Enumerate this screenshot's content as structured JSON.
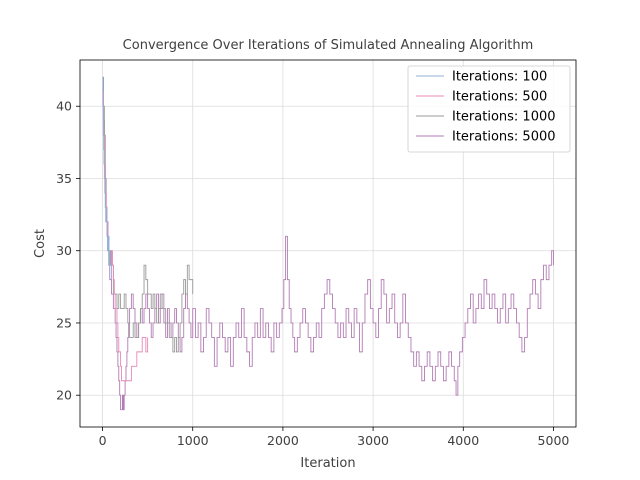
{
  "chart_data": {
    "type": "line",
    "title": "Convergence Over Iterations of Simulated Annealing Algorithm",
    "xlabel": "Iteration",
    "ylabel": "Cost",
    "xlim": [
      -250,
      5250
    ],
    "ylim": [
      17.8,
      43.2
    ],
    "xticks": [
      0,
      1000,
      2000,
      3000,
      4000,
      5000
    ],
    "yticks": [
      20,
      25,
      30,
      35,
      40
    ],
    "grid": true,
    "legend_position": "top-right",
    "series": [
      {
        "name": "Iterations: 100",
        "color": "#8fb0d8",
        "points": [
          [
            0,
            42
          ],
          [
            4,
            40
          ],
          [
            8,
            38
          ],
          [
            12,
            37
          ],
          [
            16,
            36
          ],
          [
            20,
            35
          ],
          [
            25,
            34
          ],
          [
            30,
            33
          ],
          [
            35,
            32
          ],
          [
            40,
            33
          ],
          [
            45,
            32
          ],
          [
            50,
            31
          ],
          [
            55,
            30
          ],
          [
            60,
            30
          ],
          [
            65,
            31
          ],
          [
            70,
            30
          ],
          [
            75,
            29
          ],
          [
            80,
            30
          ],
          [
            85,
            29
          ],
          [
            90,
            29
          ],
          [
            95,
            29
          ],
          [
            100,
            28
          ]
        ]
      },
      {
        "name": "Iterations: 500",
        "color": "#e889b6",
        "points": [
          [
            0,
            41
          ],
          [
            10,
            38
          ],
          [
            20,
            36
          ],
          [
            30,
            34
          ],
          [
            40,
            33
          ],
          [
            50,
            32
          ],
          [
            60,
            30
          ],
          [
            70,
            30
          ],
          [
            80,
            29
          ],
          [
            90,
            29
          ],
          [
            100,
            30
          ],
          [
            110,
            29
          ],
          [
            120,
            28
          ],
          [
            130,
            27
          ],
          [
            140,
            26
          ],
          [
            150,
            26
          ],
          [
            160,
            25
          ],
          [
            170,
            24
          ],
          [
            180,
            23
          ],
          [
            190,
            23
          ],
          [
            200,
            22
          ],
          [
            210,
            21
          ],
          [
            220,
            21
          ],
          [
            240,
            21
          ],
          [
            260,
            21
          ],
          [
            280,
            21
          ],
          [
            300,
            21
          ],
          [
            320,
            22
          ],
          [
            340,
            22
          ],
          [
            360,
            22
          ],
          [
            380,
            23
          ],
          [
            400,
            23
          ],
          [
            420,
            23
          ],
          [
            440,
            24
          ],
          [
            460,
            24
          ],
          [
            480,
            23
          ],
          [
            500,
            24
          ]
        ]
      },
      {
        "name": "Iterations: 1000",
        "color": "#999999",
        "points": [
          [
            0,
            42
          ],
          [
            10,
            40
          ],
          [
            20,
            38
          ],
          [
            30,
            35
          ],
          [
            40,
            33
          ],
          [
            50,
            31
          ],
          [
            60,
            30
          ],
          [
            70,
            29
          ],
          [
            80,
            29
          ],
          [
            90,
            30
          ],
          [
            100,
            29
          ],
          [
            120,
            27
          ],
          [
            140,
            27
          ],
          [
            160,
            26
          ],
          [
            180,
            27
          ],
          [
            200,
            26
          ],
          [
            220,
            26
          ],
          [
            240,
            27
          ],
          [
            260,
            26
          ],
          [
            280,
            25
          ],
          [
            300,
            24
          ],
          [
            320,
            24
          ],
          [
            340,
            25
          ],
          [
            360,
            24
          ],
          [
            380,
            24
          ],
          [
            400,
            25
          ],
          [
            420,
            26
          ],
          [
            440,
            27
          ],
          [
            460,
            29
          ],
          [
            480,
            28
          ],
          [
            500,
            27
          ],
          [
            520,
            27
          ],
          [
            540,
            26
          ],
          [
            560,
            27
          ],
          [
            580,
            26
          ],
          [
            600,
            25
          ],
          [
            620,
            26
          ],
          [
            640,
            27
          ],
          [
            660,
            26
          ],
          [
            680,
            26
          ],
          [
            700,
            25
          ],
          [
            720,
            25
          ],
          [
            740,
            24
          ],
          [
            760,
            24
          ],
          [
            780,
            23
          ],
          [
            800,
            24
          ],
          [
            820,
            23
          ],
          [
            840,
            24
          ],
          [
            860,
            25
          ],
          [
            880,
            27
          ],
          [
            900,
            28
          ],
          [
            920,
            27
          ],
          [
            940,
            29
          ],
          [
            960,
            28
          ],
          [
            980,
            28
          ],
          [
            1000,
            27
          ]
        ]
      },
      {
        "name": "Iterations: 5000",
        "color": "#b27cb4",
        "points": [
          [
            0,
            42
          ],
          [
            10,
            39
          ],
          [
            20,
            36
          ],
          [
            30,
            34
          ],
          [
            40,
            33
          ],
          [
            50,
            32
          ],
          [
            60,
            31
          ],
          [
            70,
            29
          ],
          [
            80,
            28
          ],
          [
            90,
            28
          ],
          [
            100,
            27
          ],
          [
            110,
            27
          ],
          [
            120,
            26
          ],
          [
            130,
            26
          ],
          [
            140,
            25
          ],
          [
            150,
            24
          ],
          [
            160,
            23
          ],
          [
            170,
            22
          ],
          [
            180,
            21
          ],
          [
            190,
            20
          ],
          [
            200,
            19
          ],
          [
            210,
            19
          ],
          [
            220,
            20
          ],
          [
            230,
            19
          ],
          [
            240,
            20
          ],
          [
            250,
            21
          ],
          [
            260,
            22
          ],
          [
            270,
            23
          ],
          [
            280,
            24
          ],
          [
            290,
            25
          ],
          [
            300,
            26
          ],
          [
            320,
            27
          ],
          [
            340,
            26
          ],
          [
            360,
            25
          ],
          [
            380,
            24
          ],
          [
            400,
            25
          ],
          [
            420,
            26
          ],
          [
            440,
            25
          ],
          [
            460,
            26
          ],
          [
            480,
            27
          ],
          [
            500,
            26
          ],
          [
            520,
            25
          ],
          [
            540,
            24
          ],
          [
            560,
            25
          ],
          [
            580,
            26
          ],
          [
            600,
            27
          ],
          [
            620,
            25
          ],
          [
            640,
            26
          ],
          [
            660,
            27
          ],
          [
            680,
            25
          ],
          [
            700,
            24
          ],
          [
            720,
            26
          ],
          [
            740,
            25
          ],
          [
            760,
            24
          ],
          [
            780,
            25
          ],
          [
            800,
            26
          ],
          [
            820,
            25
          ],
          [
            840,
            24
          ],
          [
            860,
            23
          ],
          [
            880,
            24
          ],
          [
            900,
            26
          ],
          [
            920,
            27
          ],
          [
            940,
            26
          ],
          [
            960,
            25
          ],
          [
            980,
            24
          ],
          [
            1000,
            26
          ],
          [
            1030,
            24
          ],
          [
            1060,
            25
          ],
          [
            1090,
            23
          ],
          [
            1120,
            24
          ],
          [
            1150,
            26
          ],
          [
            1180,
            25
          ],
          [
            1210,
            24
          ],
          [
            1240,
            22
          ],
          [
            1270,
            24
          ],
          [
            1300,
            25
          ],
          [
            1330,
            24
          ],
          [
            1360,
            23
          ],
          [
            1390,
            24
          ],
          [
            1420,
            22
          ],
          [
            1450,
            24
          ],
          [
            1480,
            25
          ],
          [
            1510,
            24
          ],
          [
            1540,
            26
          ],
          [
            1570,
            24
          ],
          [
            1600,
            23
          ],
          [
            1630,
            22
          ],
          [
            1660,
            24
          ],
          [
            1690,
            25
          ],
          [
            1720,
            24
          ],
          [
            1750,
            26
          ],
          [
            1780,
            24
          ],
          [
            1810,
            25
          ],
          [
            1840,
            24
          ],
          [
            1870,
            23
          ],
          [
            1900,
            25
          ],
          [
            1930,
            24
          ],
          [
            1960,
            25
          ],
          [
            1990,
            26
          ],
          [
            2010,
            28
          ],
          [
            2030,
            31
          ],
          [
            2050,
            28
          ],
          [
            2070,
            26
          ],
          [
            2090,
            25
          ],
          [
            2110,
            24
          ],
          [
            2130,
            23
          ],
          [
            2160,
            24
          ],
          [
            2190,
            25
          ],
          [
            2220,
            26
          ],
          [
            2250,
            25
          ],
          [
            2280,
            24
          ],
          [
            2310,
            23
          ],
          [
            2340,
            24
          ],
          [
            2370,
            25
          ],
          [
            2400,
            24
          ],
          [
            2430,
            26
          ],
          [
            2460,
            27
          ],
          [
            2490,
            28
          ],
          [
            2520,
            27
          ],
          [
            2550,
            26
          ],
          [
            2580,
            25
          ],
          [
            2610,
            24
          ],
          [
            2640,
            25
          ],
          [
            2670,
            24
          ],
          [
            2700,
            26
          ],
          [
            2730,
            25
          ],
          [
            2760,
            24
          ],
          [
            2790,
            26
          ],
          [
            2820,
            25
          ],
          [
            2850,
            23
          ],
          [
            2880,
            25
          ],
          [
            2910,
            27
          ],
          [
            2940,
            28
          ],
          [
            2970,
            26
          ],
          [
            3000,
            25
          ],
          [
            3030,
            24
          ],
          [
            3060,
            26
          ],
          [
            3090,
            28
          ],
          [
            3120,
            27
          ],
          [
            3150,
            25
          ],
          [
            3180,
            26
          ],
          [
            3210,
            27
          ],
          [
            3240,
            25
          ],
          [
            3270,
            24
          ],
          [
            3300,
            25
          ],
          [
            3330,
            27
          ],
          [
            3360,
            25
          ],
          [
            3390,
            24
          ],
          [
            3420,
            23
          ],
          [
            3450,
            22
          ],
          [
            3480,
            23
          ],
          [
            3510,
            22
          ],
          [
            3540,
            21
          ],
          [
            3570,
            22
          ],
          [
            3600,
            23
          ],
          [
            3630,
            22
          ],
          [
            3660,
            21
          ],
          [
            3690,
            22
          ],
          [
            3720,
            23
          ],
          [
            3750,
            22
          ],
          [
            3780,
            21
          ],
          [
            3810,
            22
          ],
          [
            3840,
            23
          ],
          [
            3870,
            22
          ],
          [
            3900,
            21
          ],
          [
            3920,
            20
          ],
          [
            3940,
            22
          ],
          [
            3960,
            23
          ],
          [
            3990,
            24
          ],
          [
            4020,
            25
          ],
          [
            4050,
            26
          ],
          [
            4080,
            27
          ],
          [
            4110,
            25
          ],
          [
            4140,
            26
          ],
          [
            4170,
            27
          ],
          [
            4200,
            26
          ],
          [
            4230,
            28
          ],
          [
            4260,
            27
          ],
          [
            4290,
            26
          ],
          [
            4320,
            27
          ],
          [
            4350,
            26
          ],
          [
            4380,
            25
          ],
          [
            4410,
            26
          ],
          [
            4440,
            27
          ],
          [
            4470,
            25
          ],
          [
            4500,
            26
          ],
          [
            4530,
            27
          ],
          [
            4560,
            26
          ],
          [
            4590,
            25
          ],
          [
            4620,
            24
          ],
          [
            4650,
            23
          ],
          [
            4680,
            24
          ],
          [
            4710,
            26
          ],
          [
            4740,
            27
          ],
          [
            4770,
            28
          ],
          [
            4800,
            27
          ],
          [
            4830,
            26
          ],
          [
            4860,
            28
          ],
          [
            4890,
            29
          ],
          [
            4920,
            28
          ],
          [
            4950,
            29
          ],
          [
            4980,
            30
          ],
          [
            5000,
            29
          ]
        ]
      }
    ]
  }
}
